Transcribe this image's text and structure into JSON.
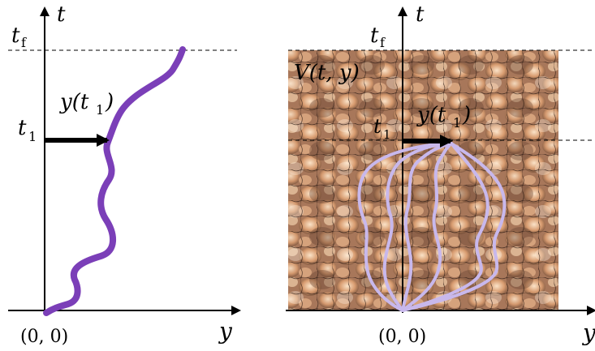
{
  "left_panel": {
    "axis_t": "t",
    "axis_y": "y",
    "tf_label": "t",
    "tf_sub": "f",
    "t1_label": "t",
    "t1_sub": "1",
    "y_t1_label": "y(t",
    "y_t1_sub": "1",
    "y_t1_close": ")",
    "origin_label": "(0, 0)",
    "path_color": "#7b3fb8",
    "arrow_color": "#000000"
  },
  "right_panel": {
    "axis_t": "t",
    "axis_y": "y",
    "tf_label": "t",
    "tf_sub": "f",
    "t1_label": "t",
    "t1_sub": "1",
    "y_t1_label": "y(t",
    "y_t1_sub": "1",
    "y_t1_close": ")",
    "potential_label": "V(t, y)",
    "origin_label": "(0, 0)",
    "path_color": "#c8b8ec",
    "surface_light": "#f3d2b2",
    "surface_dark": "#6e4a36"
  }
}
